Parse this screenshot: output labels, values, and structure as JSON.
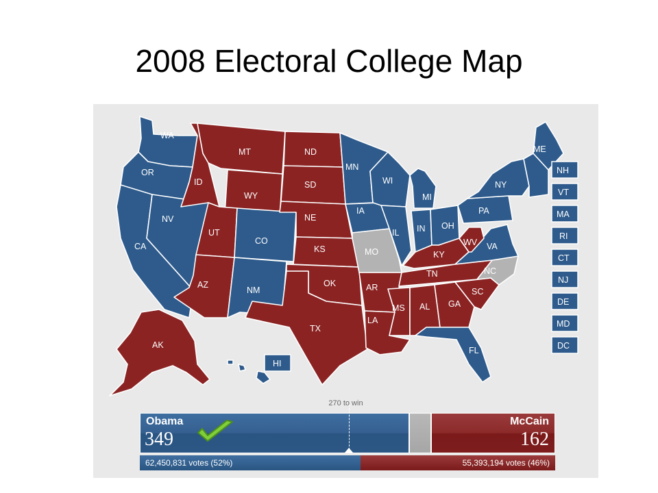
{
  "title": "2008 Electoral College Map",
  "colors": {
    "democrat": "#2e5b8c",
    "republican": "#8b2323",
    "undecided": "#b3b3b3",
    "background": "#e9e9e9"
  },
  "states": {
    "WA": {
      "label": "WA",
      "winner": "obama"
    },
    "OR": {
      "label": "OR",
      "winner": "obama"
    },
    "CA": {
      "label": "CA",
      "winner": "obama"
    },
    "NV": {
      "label": "NV",
      "winner": "obama"
    },
    "ID": {
      "label": "ID",
      "winner": "mccain"
    },
    "MT": {
      "label": "MT",
      "winner": "mccain"
    },
    "WY": {
      "label": "WY",
      "winner": "mccain"
    },
    "UT": {
      "label": "UT",
      "winner": "mccain"
    },
    "AZ": {
      "label": "AZ",
      "winner": "mccain"
    },
    "CO": {
      "label": "CO",
      "winner": "obama"
    },
    "NM": {
      "label": "NM",
      "winner": "obama"
    },
    "ND": {
      "label": "ND",
      "winner": "mccain"
    },
    "SD": {
      "label": "SD",
      "winner": "mccain"
    },
    "NE": {
      "label": "NE",
      "winner": "mccain"
    },
    "KS": {
      "label": "KS",
      "winner": "mccain"
    },
    "OK": {
      "label": "OK",
      "winner": "mccain"
    },
    "TX": {
      "label": "TX",
      "winner": "mccain"
    },
    "MN": {
      "label": "MN",
      "winner": "obama"
    },
    "IA": {
      "label": "IA",
      "winner": "obama"
    },
    "MO": {
      "label": "MO",
      "winner": "undecided"
    },
    "AR": {
      "label": "AR",
      "winner": "mccain"
    },
    "LA": {
      "label": "LA",
      "winner": "mccain"
    },
    "WI": {
      "label": "WI",
      "winner": "obama"
    },
    "IL": {
      "label": "IL",
      "winner": "obama"
    },
    "MI": {
      "label": "MI",
      "winner": "obama"
    },
    "IN": {
      "label": "IN",
      "winner": "obama"
    },
    "OH": {
      "label": "OH",
      "winner": "obama"
    },
    "KY": {
      "label": "KY",
      "winner": "mccain"
    },
    "TN": {
      "label": "TN",
      "winner": "mccain"
    },
    "MS": {
      "label": "MS",
      "winner": "mccain"
    },
    "AL": {
      "label": "AL",
      "winner": "mccain"
    },
    "GA": {
      "label": "GA",
      "winner": "mccain"
    },
    "FL": {
      "label": "FL",
      "winner": "obama"
    },
    "SC": {
      "label": "SC",
      "winner": "mccain"
    },
    "NC": {
      "label": "NC",
      "winner": "undecided"
    },
    "VA": {
      "label": "VA",
      "winner": "obama"
    },
    "WV": {
      "label": "WV",
      "winner": "mccain"
    },
    "PA": {
      "label": "PA",
      "winner": "obama"
    },
    "NY": {
      "label": "NY",
      "winner": "obama"
    },
    "ME": {
      "label": "ME",
      "winner": "obama"
    },
    "AK": {
      "label": "AK",
      "winner": "mccain"
    },
    "HI": {
      "label": "HI",
      "winner": "obama"
    }
  },
  "small_states": [
    "NH",
    "VT",
    "MA",
    "RI",
    "CT",
    "NJ",
    "DE",
    "MD",
    "DC"
  ],
  "tally": {
    "threshold_label": "270 to win",
    "threshold": 270,
    "total_electoral": 538,
    "obama": {
      "name": "Obama",
      "electoral": "349",
      "votes_text": "62,450,831 votes (52%)",
      "won": true
    },
    "mccain": {
      "name": "McCain",
      "electoral": "162",
      "votes_text": "55,393,194 votes (46%)"
    },
    "undecided_electoral": 27,
    "popular_vote_split": {
      "obama": 0.53,
      "mccain": 0.47
    }
  }
}
